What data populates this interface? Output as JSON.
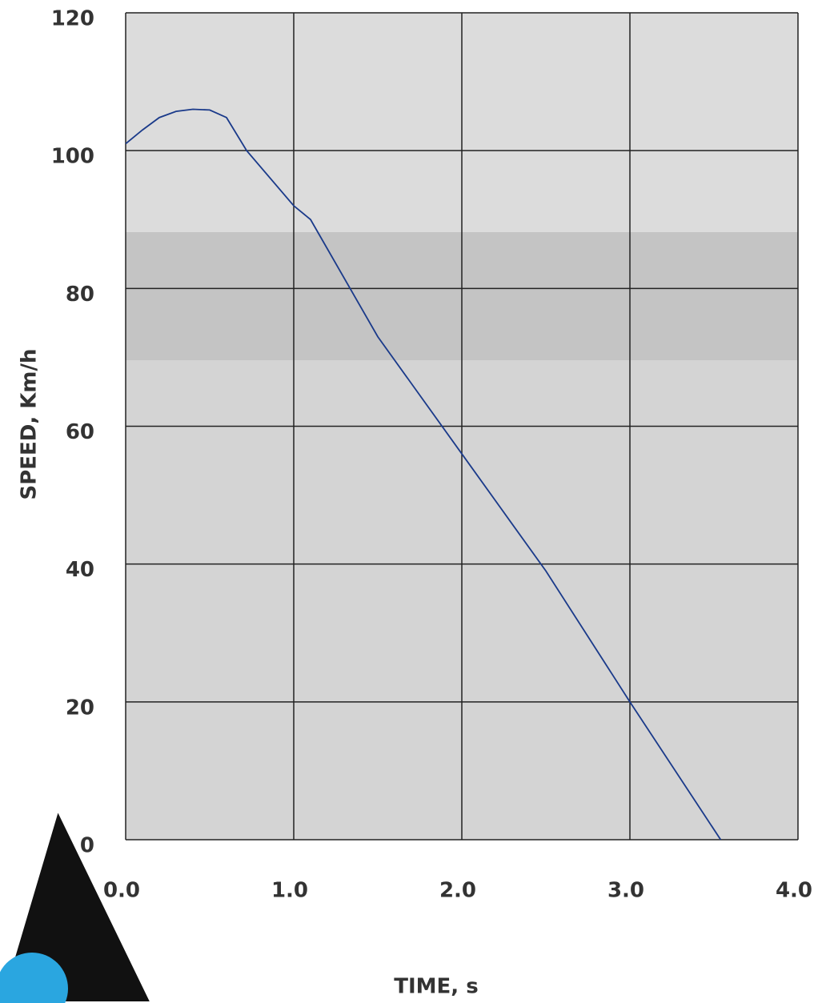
{
  "chart_data": {
    "type": "line",
    "x_label": "TIME, s",
    "y_label": "SPEED, Km/h",
    "xlim": [
      0,
      4
    ],
    "ylim": [
      0,
      120
    ],
    "xticks": [
      {
        "value": 0,
        "label": "0.0"
      },
      {
        "value": 1,
        "label": "1.0"
      },
      {
        "value": 2,
        "label": "2.0"
      },
      {
        "value": 3,
        "label": "3.0"
      },
      {
        "value": 4,
        "label": "4.0"
      }
    ],
    "yticks": [
      0,
      20,
      40,
      60,
      80,
      100,
      120
    ],
    "grid": true,
    "x": [
      0,
      0.1,
      0.2,
      0.3,
      0.4,
      0.5,
      0.6,
      0.72,
      1.0,
      1.1,
      1.5,
      2.0,
      2.5,
      3.0,
      3.54
    ],
    "series": [
      {
        "color": "#1a3a8a",
        "values": [
          101,
          103,
          104.8,
          105.7,
          106,
          105.9,
          104.8,
          100,
          92,
          90,
          73,
          56,
          39,
          20,
          0
        ]
      }
    ]
  }
}
